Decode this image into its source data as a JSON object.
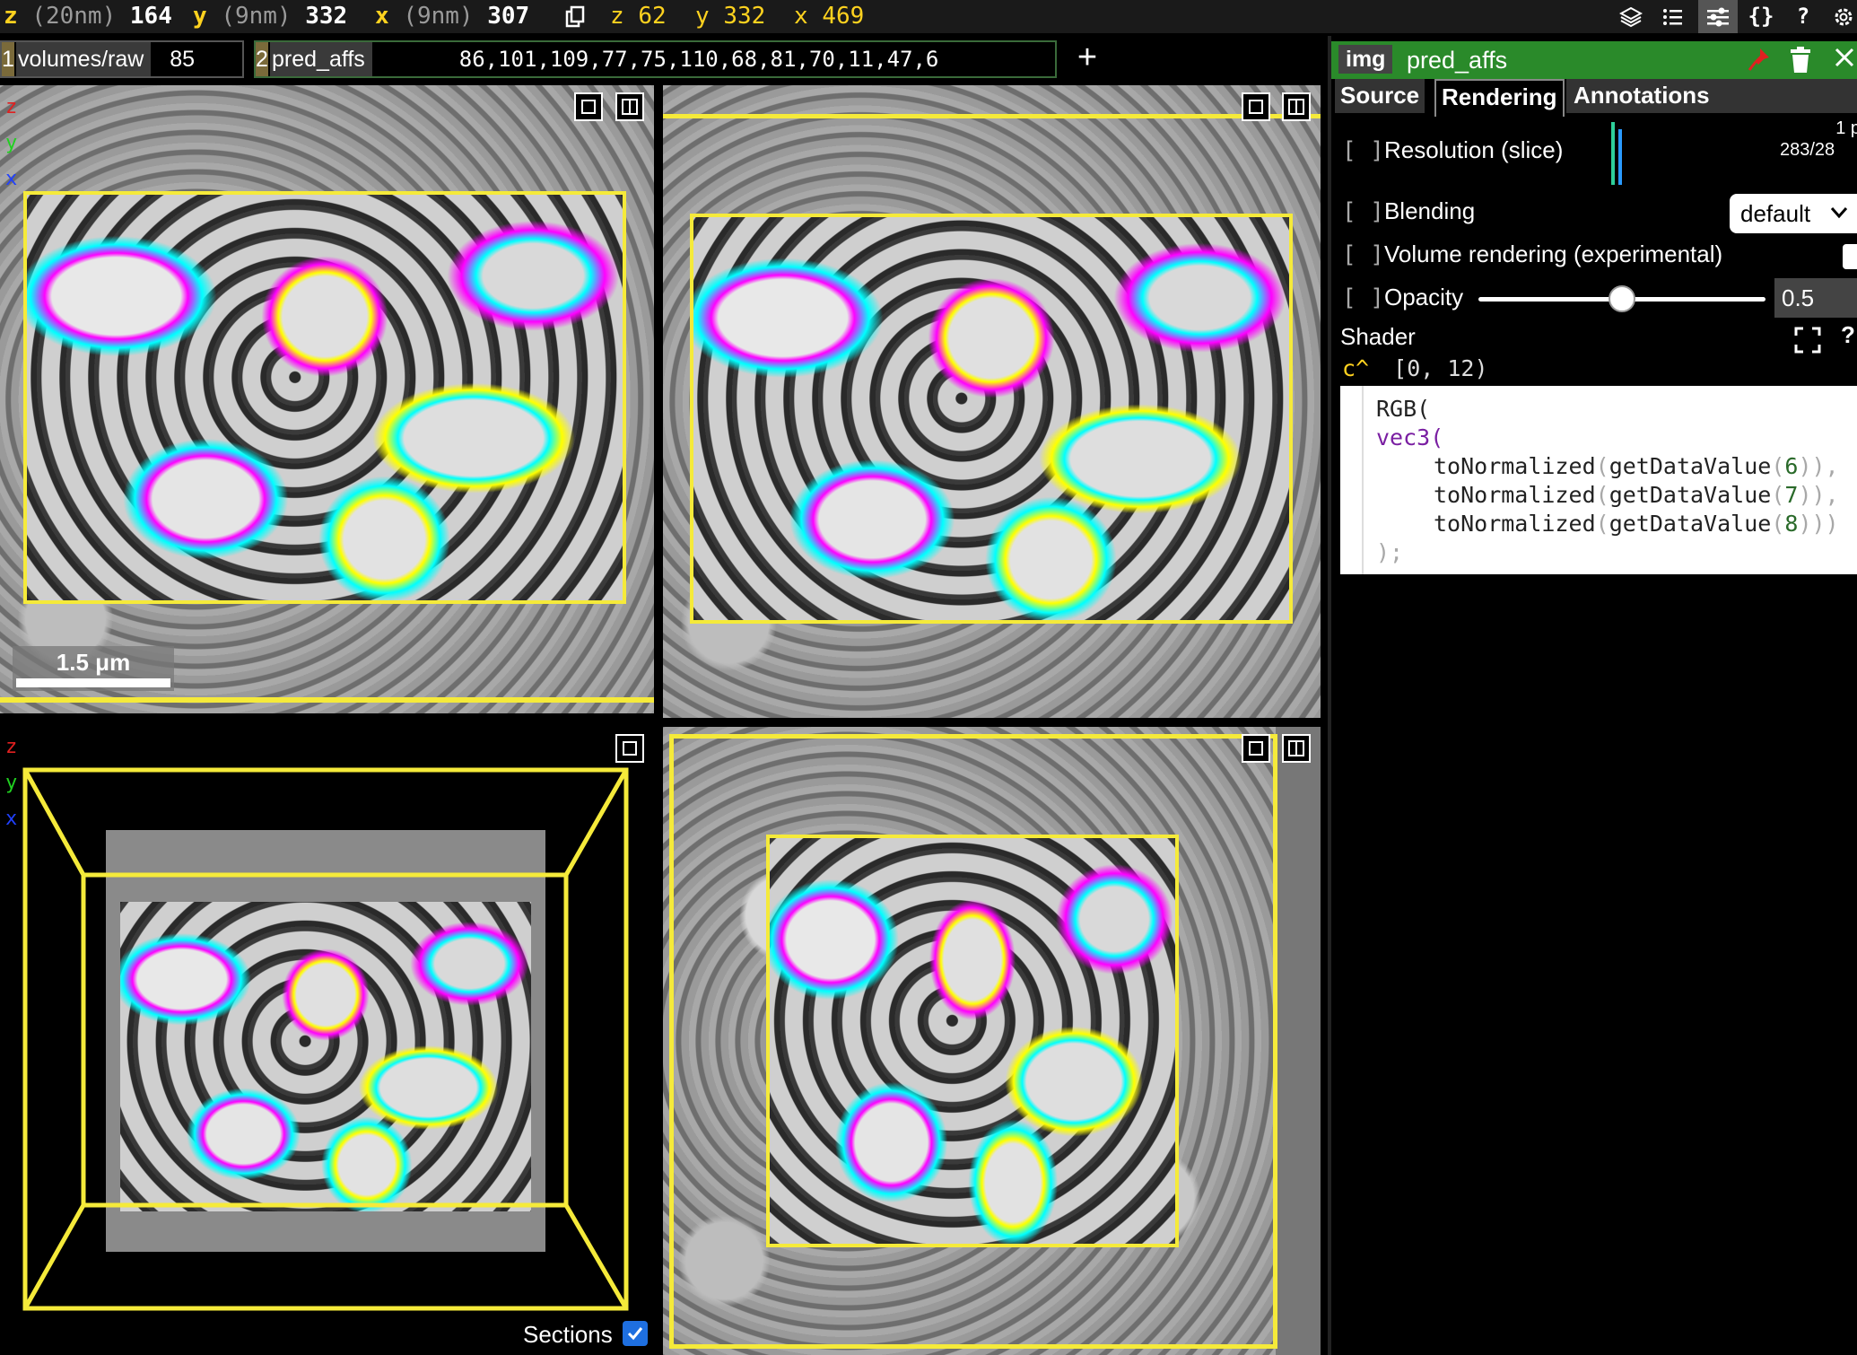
{
  "topbar": {
    "coords": [
      {
        "axis": "z",
        "unit": "(20nm)",
        "value": "164"
      },
      {
        "axis": "y",
        "unit": "(9nm)",
        "value": "332"
      },
      {
        "axis": "x",
        "unit": "(9nm)",
        "value": "307"
      }
    ],
    "mouse": [
      {
        "axis": "z",
        "value": "62"
      },
      {
        "axis": "y",
        "value": "332"
      },
      {
        "axis": "x",
        "value": "469"
      }
    ],
    "icons": [
      "layers-icon",
      "list-icon",
      "sliders-icon",
      "braces-icon",
      "help-icon",
      "settings-icon"
    ],
    "icon_glyphs": {
      "braces": "{}",
      "help": "?"
    }
  },
  "layers": [
    {
      "num": "1",
      "name": "volumes/raw",
      "value": "85"
    },
    {
      "num": "2",
      "name": "pred_affs",
      "value": "86,101,109,77,75,110,68,81,70,11,47,6"
    }
  ],
  "add_layer": "+",
  "panels": {
    "axes": [
      "z",
      "y",
      "x"
    ],
    "scalebar": "1.5 μm",
    "sections_label": "Sections"
  },
  "side": {
    "badge": "img",
    "layer_name": "pred_affs",
    "tabs": [
      "Source",
      "Rendering",
      "Annotations"
    ],
    "resolution_label": "Resolution (slice)",
    "resolution_value_1": "1 p",
    "resolution_value_2": "283/28",
    "blending_label": "Blending",
    "blending_value": "default",
    "volume_label": "Volume rendering (experimental)",
    "opacity_label": "Opacity",
    "opacity_value": "0.5",
    "opacity_fraction": 0.5,
    "shader_label": "Shader",
    "channel_label": "c^",
    "channel_range": "[0, 12)",
    "bracket": "[ ]",
    "code": {
      "line1": "RGB(",
      "line2": "vec3(",
      "line3_fn": "toNormalized",
      "line3_inner": "getDataValue",
      "args": [
        "6",
        "7",
        "8"
      ],
      "close": ");"
    }
  },
  "colors": {
    "accent": "#f5ea3a",
    "header_green": "#2a8a2a"
  }
}
